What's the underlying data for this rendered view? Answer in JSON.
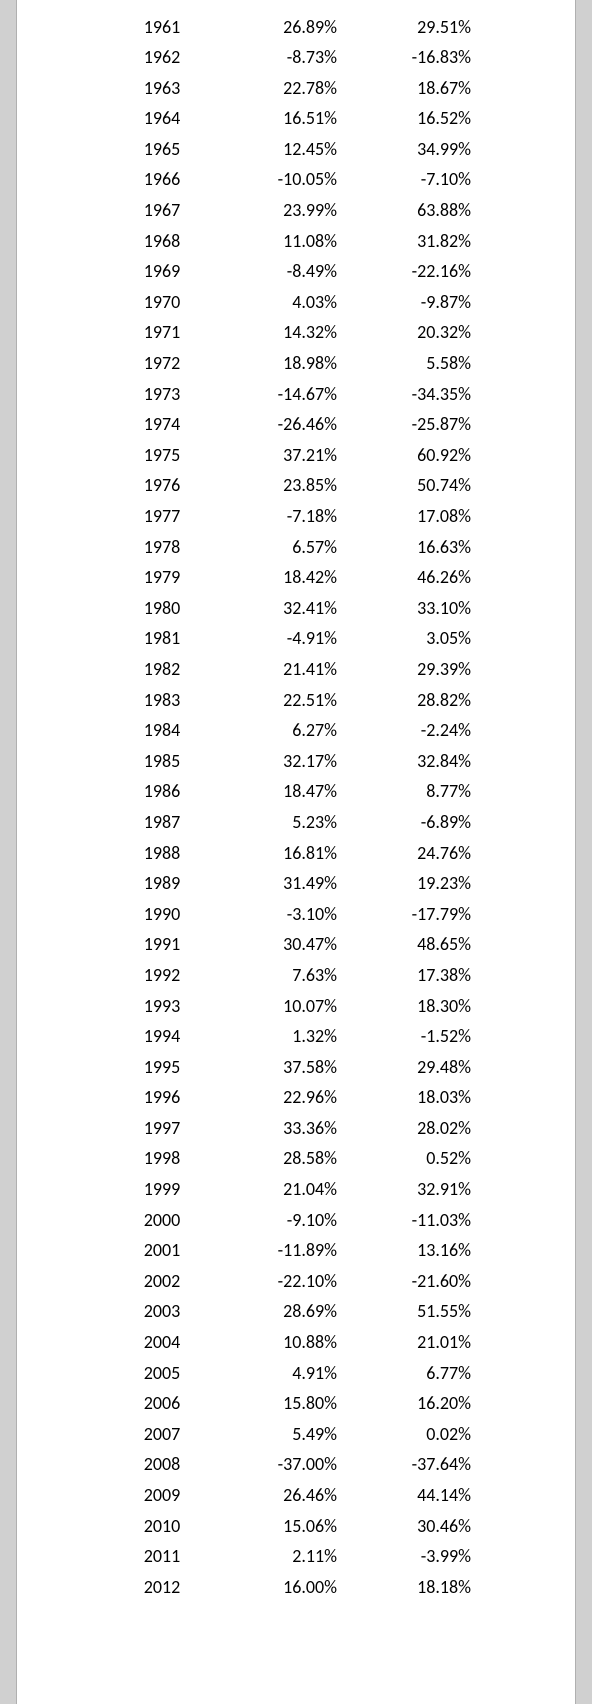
{
  "table": {
    "background_color": "#ffffff",
    "text_color": "#000000",
    "font_size": 18,
    "rows": [
      {
        "year": "1961",
        "pct1": "26.89%",
        "pct2": "29.51%"
      },
      {
        "year": "1962",
        "pct1": "-8.73%",
        "pct2": "-16.83%"
      },
      {
        "year": "1963",
        "pct1": "22.78%",
        "pct2": "18.67%"
      },
      {
        "year": "1964",
        "pct1": "16.51%",
        "pct2": "16.52%"
      },
      {
        "year": "1965",
        "pct1": "12.45%",
        "pct2": "34.99%"
      },
      {
        "year": "1966",
        "pct1": "-10.05%",
        "pct2": "-7.10%"
      },
      {
        "year": "1967",
        "pct1": "23.99%",
        "pct2": "63.88%"
      },
      {
        "year": "1968",
        "pct1": "11.08%",
        "pct2": "31.82%"
      },
      {
        "year": "1969",
        "pct1": "-8.49%",
        "pct2": "-22.16%"
      },
      {
        "year": "1970",
        "pct1": "4.03%",
        "pct2": "-9.87%"
      },
      {
        "year": "1971",
        "pct1": "14.32%",
        "pct2": "20.32%"
      },
      {
        "year": "1972",
        "pct1": "18.98%",
        "pct2": "5.58%"
      },
      {
        "year": "1973",
        "pct1": "-14.67%",
        "pct2": "-34.35%"
      },
      {
        "year": "1974",
        "pct1": "-26.46%",
        "pct2": "-25.87%"
      },
      {
        "year": "1975",
        "pct1": "37.21%",
        "pct2": "60.92%"
      },
      {
        "year": "1976",
        "pct1": "23.85%",
        "pct2": "50.74%"
      },
      {
        "year": "1977",
        "pct1": "-7.18%",
        "pct2": "17.08%"
      },
      {
        "year": "1978",
        "pct1": "6.57%",
        "pct2": "16.63%"
      },
      {
        "year": "1979",
        "pct1": "18.42%",
        "pct2": "46.26%"
      },
      {
        "year": "1980",
        "pct1": "32.41%",
        "pct2": "33.10%"
      },
      {
        "year": "1981",
        "pct1": "-4.91%",
        "pct2": "3.05%"
      },
      {
        "year": "1982",
        "pct1": "21.41%",
        "pct2": "29.39%"
      },
      {
        "year": "1983",
        "pct1": "22.51%",
        "pct2": "28.82%"
      },
      {
        "year": "1984",
        "pct1": "6.27%",
        "pct2": "-2.24%"
      },
      {
        "year": "1985",
        "pct1": "32.17%",
        "pct2": "32.84%"
      },
      {
        "year": "1986",
        "pct1": "18.47%",
        "pct2": "8.77%"
      },
      {
        "year": "1987",
        "pct1": "5.23%",
        "pct2": "-6.89%"
      },
      {
        "year": "1988",
        "pct1": "16.81%",
        "pct2": "24.76%"
      },
      {
        "year": "1989",
        "pct1": "31.49%",
        "pct2": "19.23%"
      },
      {
        "year": "1990",
        "pct1": "-3.10%",
        "pct2": "-17.79%"
      },
      {
        "year": "1991",
        "pct1": "30.47%",
        "pct2": "48.65%"
      },
      {
        "year": "1992",
        "pct1": "7.63%",
        "pct2": "17.38%"
      },
      {
        "year": "1993",
        "pct1": "10.07%",
        "pct2": "18.30%"
      },
      {
        "year": "1994",
        "pct1": "1.32%",
        "pct2": "-1.52%"
      },
      {
        "year": "1995",
        "pct1": "37.58%",
        "pct2": "29.48%"
      },
      {
        "year": "1996",
        "pct1": "22.96%",
        "pct2": "18.03%"
      },
      {
        "year": "1997",
        "pct1": "33.36%",
        "pct2": "28.02%"
      },
      {
        "year": "1998",
        "pct1": "28.58%",
        "pct2": "0.52%"
      },
      {
        "year": "1999",
        "pct1": "21.04%",
        "pct2": "32.91%"
      },
      {
        "year": "2000",
        "pct1": "-9.10%",
        "pct2": "-11.03%"
      },
      {
        "year": "2001",
        "pct1": "-11.89%",
        "pct2": "13.16%"
      },
      {
        "year": "2002",
        "pct1": "-22.10%",
        "pct2": "-21.60%"
      },
      {
        "year": "2003",
        "pct1": "28.69%",
        "pct2": "51.55%"
      },
      {
        "year": "2004",
        "pct1": "10.88%",
        "pct2": "21.01%"
      },
      {
        "year": "2005",
        "pct1": "4.91%",
        "pct2": "6.77%"
      },
      {
        "year": "2006",
        "pct1": "15.80%",
        "pct2": "16.20%"
      },
      {
        "year": "2007",
        "pct1": "5.49%",
        "pct2": "0.02%"
      },
      {
        "year": "2008",
        "pct1": "-37.00%",
        "pct2": "-37.64%"
      },
      {
        "year": "2009",
        "pct1": "26.46%",
        "pct2": "44.14%"
      },
      {
        "year": "2010",
        "pct1": "15.06%",
        "pct2": "30.46%"
      },
      {
        "year": "2011",
        "pct1": "2.11%",
        "pct2": "-3.99%"
      },
      {
        "year": "2012",
        "pct1": "16.00%",
        "pct2": "18.18%"
      }
    ]
  }
}
